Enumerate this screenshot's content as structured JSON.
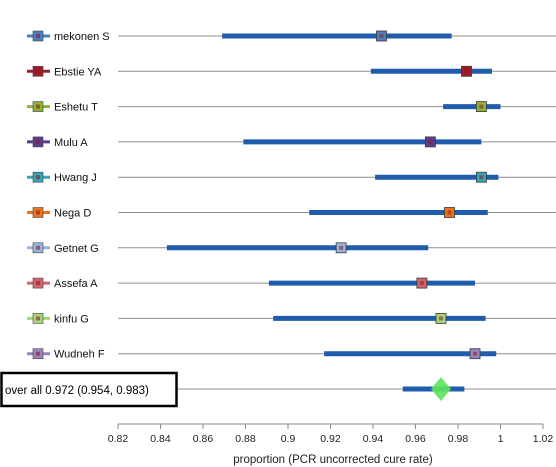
{
  "chart_data": {
    "type": "forest",
    "xlabel": "proportion  (PCR uncorrected cure rate)",
    "xlim": [
      0.82,
      1.02
    ],
    "ticks": [
      "0.82",
      "0.84",
      "0.86",
      "0.88",
      "0.9",
      "0.92",
      "0.94",
      "0.96",
      "0.98",
      "1",
      "1.02"
    ],
    "tick_values": [
      0.82,
      0.84,
      0.86,
      0.88,
      0.9,
      0.92,
      0.94,
      0.96,
      0.98,
      1.0,
      1.02
    ],
    "grid": "horizontal row lines",
    "ci_color": "#1f5cab",
    "diamond_color": "#5ee35e",
    "studies": [
      {
        "name": "mekonen S",
        "estimate": 0.944,
        "lower": 0.869,
        "upper": 0.977,
        "color": "#4a7ebf"
      },
      {
        "name": "Ebstie YA",
        "estimate": 0.984,
        "lower": 0.939,
        "upper": 0.996,
        "color": "#9e1c27"
      },
      {
        "name": "Eshetu T",
        "estimate": 0.991,
        "lower": 0.973,
        "upper": 1.0,
        "color": "#8db33a"
      },
      {
        "name": "Mulu A",
        "estimate": 0.967,
        "lower": 0.879,
        "upper": 0.991,
        "color": "#5b3c8c"
      },
      {
        "name": "Hwang J",
        "estimate": 0.991,
        "lower": 0.941,
        "upper": 0.999,
        "color": "#36a6b4"
      },
      {
        "name": "Nega D",
        "estimate": 0.976,
        "lower": 0.91,
        "upper": 0.994,
        "color": "#e8741e"
      },
      {
        "name": "Getnet G",
        "estimate": 0.925,
        "lower": 0.843,
        "upper": 0.966,
        "color": "#98b4dc"
      },
      {
        "name": "Assefa A",
        "estimate": 0.963,
        "lower": 0.891,
        "upper": 0.988,
        "color": "#d2646b"
      },
      {
        "name": "kinfu G",
        "estimate": 0.972,
        "lower": 0.893,
        "upper": 0.993,
        "color": "#a6d47a"
      },
      {
        "name": "Wudneh F",
        "estimate": 0.988,
        "lower": 0.917,
        "upper": 0.998,
        "color": "#9a82bf"
      }
    ],
    "overall": {
      "text": "over all  0.972 (0.954, 0.983)",
      "estimate": 0.972,
      "lower": 0.954,
      "upper": 0.983
    }
  }
}
